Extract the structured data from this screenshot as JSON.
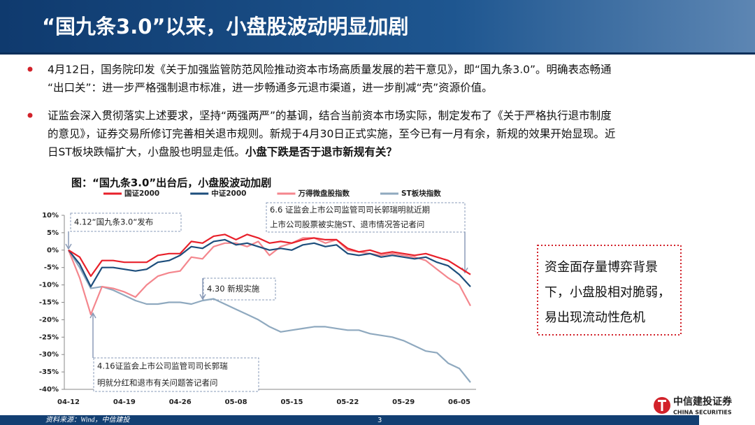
{
  "header": {
    "title": "“国九条3.0”以来，小盘股波动明显加剧"
  },
  "bullets": [
    {
      "lines": [
        "4月12日，国务院印发《关于加强监管防范风险推动资本市场高质量发展的若干意见》，即“国九条3.0”。明确表态畅通",
        "“出口关”：进一步严格强制退市标准，进一步畅通多元退市渠道，进一步削减“壳”资源价值。"
      ]
    },
    {
      "lines": [
        "证监会深入贯彻落实上述要求，坚持“两强两严”的基调，结合当前资本市场实际，制定发布了《关于严格执行退市制度",
        "的意见》，证券交易所修订完善相关退市规则。新规于4月30日正式实施，至今已有一月有余，新规的效果开始显现。近",
        "日ST板块跌幅扩大，小盘股也明显走低。"
      ],
      "bold": "小盘下跌是否于退市新规有关？"
    }
  ],
  "chart_data": {
    "type": "line",
    "title": "图：“国九条3.0”出台后，小盘股波动加剧",
    "categories": [
      "04-12",
      null,
      null,
      null,
      null,
      "04-19",
      null,
      null,
      null,
      null,
      "04-26",
      null,
      null,
      null,
      null,
      "05-08",
      null,
      null,
      null,
      null,
      "05-15",
      null,
      null,
      null,
      null,
      "05-22",
      null,
      null,
      null,
      null,
      "05-29",
      null,
      null,
      null,
      null,
      "06-05",
      null
    ],
    "series": [
      {
        "name": "国证2000",
        "color": "#e8202a",
        "values": [
          0,
          -2,
          -7.5,
          -3,
          -3,
          -3.5,
          -3.5,
          -3.5,
          -1.5,
          -1,
          -1,
          2.5,
          2,
          4,
          4.5,
          3,
          4.5,
          3.5,
          2,
          2.5,
          2,
          3,
          3.5,
          3,
          3,
          0.5,
          -0.5,
          0,
          -1,
          -0.5,
          -1,
          -1.5,
          -1,
          -2,
          -3,
          -5,
          -7
        ]
      },
      {
        "name": "中证2000",
        "color": "#1d4e7c",
        "values": [
          0,
          -4,
          -10.5,
          -5,
          -5,
          -5.5,
          -6,
          -5.5,
          -3.5,
          -3,
          -1.5,
          1,
          0.5,
          2.5,
          3,
          1.5,
          2,
          1,
          0,
          0.5,
          0,
          1.5,
          2,
          1,
          1.5,
          -1,
          -1.5,
          -1,
          -2,
          -1.5,
          -2,
          -2.5,
          -2,
          -3.5,
          -4.5,
          -7,
          -10.5
        ]
      },
      {
        "name": "万得微盘股指数",
        "color": "#f4868d",
        "values": [
          0,
          -8,
          -18.5,
          -10.5,
          -11,
          -12,
          -13.5,
          -10,
          -7.5,
          -6.5,
          -6,
          -2,
          -2.5,
          1,
          2,
          2,
          1,
          2.5,
          -1.5,
          1,
          2,
          3.5,
          3.5,
          2,
          3,
          0,
          -0.5,
          -1,
          -1.5,
          -1,
          -1.5,
          -2,
          -3,
          -5.5,
          -8,
          -10,
          -16
        ]
      },
      {
        "name": "ST板块指数",
        "color": "#8fa9bf",
        "values": [
          0,
          -5,
          -11,
          -10.5,
          -11.5,
          -13,
          -14.5,
          -15.5,
          -15.5,
          -15,
          -15,
          -15.5,
          -14.5,
          -14,
          -15.5,
          -17,
          -18.5,
          -20,
          -22,
          -23.5,
          -23,
          -22.5,
          -22,
          -22,
          -22.5,
          -23,
          -23,
          -24,
          -24.5,
          -25,
          -26,
          -27.5,
          -29,
          -29.5,
          -32.5,
          -34,
          -38
        ]
      }
    ],
    "ylim": [
      -40,
      10
    ],
    "yticks": [
      {
        "value": 10,
        "label": "10%"
      },
      {
        "value": 5,
        "label": "5%"
      },
      {
        "value": 0,
        "label": "0%"
      },
      {
        "value": -5,
        "label": "-5%"
      },
      {
        "value": -10,
        "label": "-10%"
      },
      {
        "value": -15,
        "label": "-15%"
      },
      {
        "value": -20,
        "label": "-20%"
      },
      {
        "value": -25,
        "label": "-25%"
      },
      {
        "value": -30,
        "label": "-30%"
      },
      {
        "value": -35,
        "label": "-35%"
      },
      {
        "value": -40,
        "label": "-40%"
      }
    ],
    "grid": false,
    "legend": "top",
    "annotations": [
      {
        "lines": [
          "4.12“国九条3.0“发布"
        ]
      },
      {
        "lines": [
          "4.30 新规实施"
        ]
      },
      {
        "lines": [
          "4.16证监会上市公司监管司司长郭瑞",
          "明就分红和退市有关问题答记者问"
        ]
      },
      {
        "lines": [
          "6.6 证监会上市公司监管司司长郭瑞明就近期",
          "上市公司股票被实施ST、退市情况答记者问"
        ]
      }
    ]
  },
  "callout": {
    "lines": [
      "资金面存量博弈背景",
      "下，小盘股相对脆弱，",
      "易出现流动性危机"
    ]
  },
  "footer": {
    "source": "资料来源：Wind，中信建投",
    "page": "3"
  },
  "logo": {
    "name": "中信建投证券",
    "english": "CHINA SECURITIES"
  }
}
